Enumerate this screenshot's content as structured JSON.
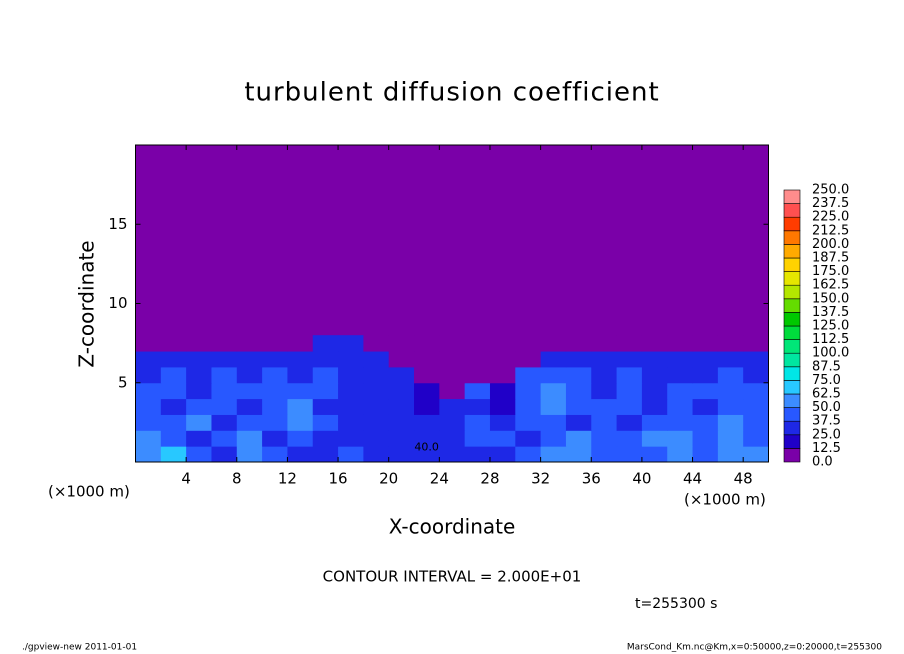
{
  "chart_data": {
    "type": "heatmap",
    "title": "turbulent diffusion coefficient",
    "x_label": "X-coordinate",
    "y_label": "Z-coordinate",
    "x_unit": "(×1000 m)",
    "x_unit_right": "(×1000 m)",
    "annotation": "CONTOUR INTERVAL = 2.000E+01",
    "time_label": "t=255300 s",
    "contour_label": "40.0",
    "footer_left": "./gpview-new   2011-01-01",
    "footer_right": "MarsCond_Km.nc@Km,x=0:50000,z=0:20000,t=255300",
    "xlim": [
      0,
      50
    ],
    "ylim": [
      0,
      20
    ],
    "xticks": [
      4,
      8,
      12,
      16,
      20,
      24,
      28,
      32,
      36,
      40,
      44,
      48
    ],
    "yticks": [
      5,
      10,
      15
    ],
    "x_edges": [
      0,
      2,
      4,
      6,
      8,
      10,
      12,
      14,
      16,
      18,
      20,
      22,
      24,
      26,
      28,
      30,
      32,
      34,
      36,
      38,
      40,
      42,
      44,
      46,
      48,
      50
    ],
    "z_edges": [
      0,
      1,
      2,
      3,
      4,
      5,
      6,
      7,
      8
    ],
    "z_values": [
      [
        55,
        70,
        45,
        30,
        60,
        40,
        35,
        30,
        40,
        35,
        30,
        30,
        25,
        30,
        35,
        40,
        60,
        50,
        40,
        45,
        40,
        55,
        45,
        60,
        50
      ],
      [
        60,
        45,
        35,
        40,
        55,
        35,
        40,
        35,
        30,
        30,
        30,
        25,
        25,
        40,
        45,
        35,
        40,
        50,
        40,
        40,
        50,
        55,
        40,
        50,
        45
      ],
      [
        45,
        40,
        50,
        35,
        45,
        40,
        50,
        40,
        30,
        30,
        30,
        30,
        25,
        45,
        30,
        40,
        45,
        35,
        45,
        35,
        45,
        40,
        40,
        50,
        40
      ],
      [
        40,
        35,
        45,
        40,
        35,
        45,
        50,
        35,
        30,
        30,
        30,
        20,
        30,
        35,
        20,
        45,
        60,
        45,
        40,
        40,
        35,
        40,
        35,
        45,
        40
      ],
      [
        45,
        40,
        35,
        40,
        40,
        45,
        40,
        40,
        35,
        35,
        30,
        15,
        10,
        40,
        15,
        40,
        55,
        45,
        35,
        40,
        35,
        40,
        40,
        40,
        45
      ],
      [
        35,
        40,
        30,
        40,
        35,
        40,
        35,
        40,
        35,
        30,
        30,
        5,
        5,
        10,
        5,
        40,
        40,
        40,
        35,
        45,
        35,
        35,
        35,
        40,
        35
      ],
      [
        30,
        35,
        30,
        35,
        30,
        35,
        35,
        35,
        30,
        25,
        5,
        0,
        0,
        0,
        0,
        5,
        30,
        30,
        35,
        30,
        30,
        30,
        30,
        30,
        30
      ],
      [
        5,
        5,
        5,
        5,
        5,
        5,
        5,
        25,
        30,
        10,
        0,
        0,
        0,
        0,
        0,
        0,
        0,
        5,
        5,
        5,
        5,
        5,
        5,
        5,
        5
      ]
    ],
    "levels": [
      {
        "value": 0,
        "label": "0.0"
      },
      {
        "value": 12.5,
        "label": "12.5"
      },
      {
        "value": 25,
        "label": "25.0"
      },
      {
        "value": 37.5,
        "label": "37.5"
      },
      {
        "value": 50,
        "label": "50.0"
      },
      {
        "value": 62.5,
        "label": "62.5"
      },
      {
        "value": 75,
        "label": "75.0"
      },
      {
        "value": 87.5,
        "label": "87.5"
      },
      {
        "value": 100,
        "label": "100.0"
      },
      {
        "value": 112.5,
        "label": "112.5"
      },
      {
        "value": 125,
        "label": "125.0"
      },
      {
        "value": 137.5,
        "label": "137.5"
      },
      {
        "value": 150,
        "label": "150.0"
      },
      {
        "value": 162.5,
        "label": "162.5"
      },
      {
        "value": 175,
        "label": "175.0"
      },
      {
        "value": 187.5,
        "label": "187.5"
      },
      {
        "value": 200,
        "label": "200.0"
      },
      {
        "value": 212.5,
        "label": "212.5"
      },
      {
        "value": 225,
        "label": "225.0"
      },
      {
        "value": 237.5,
        "label": "237.5"
      },
      {
        "value": 250,
        "label": "250.0"
      }
    ],
    "colors": [
      "#7a00a8",
      "#2000c8",
      "#1e28e6",
      "#2858ff",
      "#3c8cff",
      "#28c8ff",
      "#00e6e6",
      "#00e6a0",
      "#00e678",
      "#00dc3c",
      "#00c800",
      "#64dc00",
      "#b4e600",
      "#e6e600",
      "#ffd200",
      "#ffaa00",
      "#ff7800",
      "#ff3c00",
      "#ff5050",
      "#ff8c8c"
    ]
  }
}
